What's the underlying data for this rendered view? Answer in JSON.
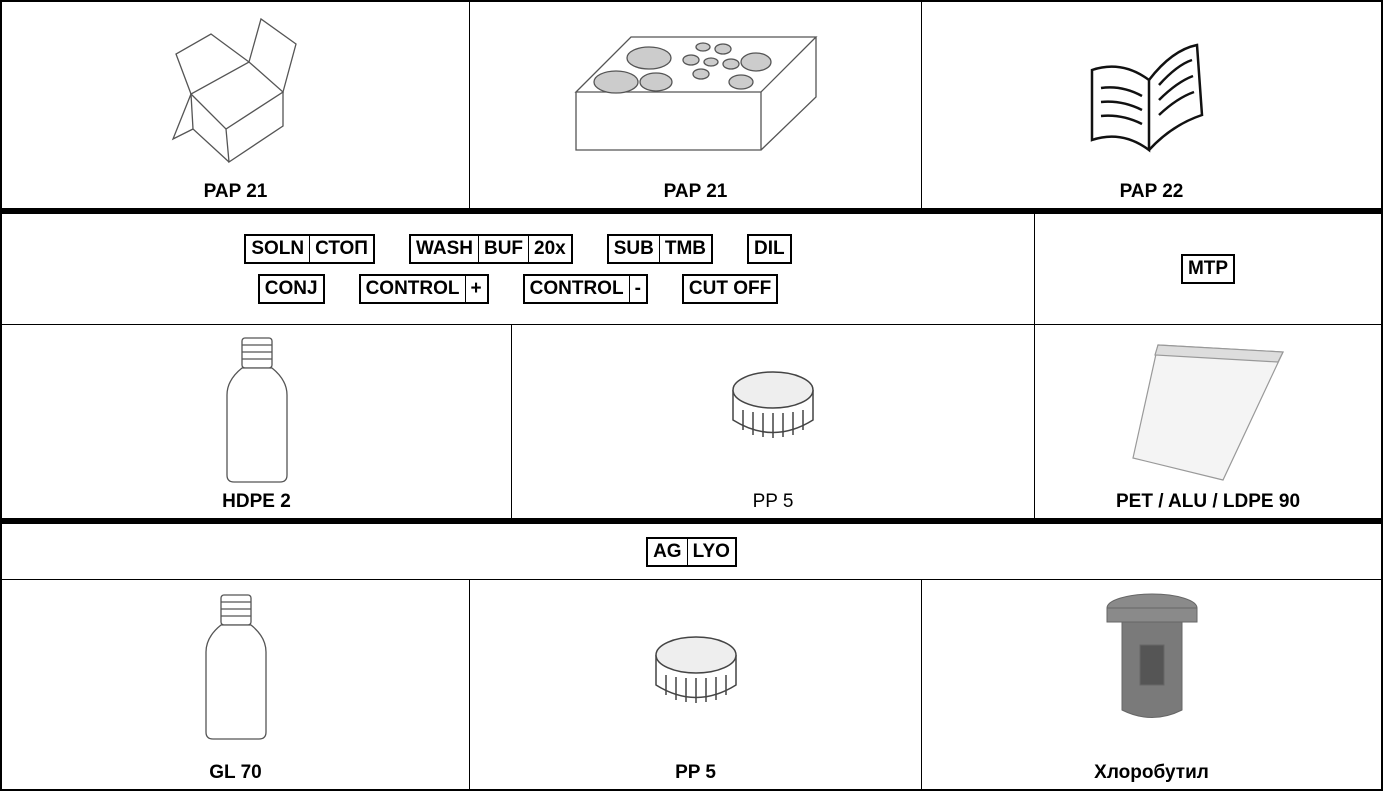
{
  "rows": [
    {
      "cells": [
        {
          "label": "PAP 21"
        },
        {
          "label": "PAP 21"
        },
        {
          "label": "PAP 22"
        }
      ]
    },
    {
      "cells": [
        {
          "symbol_lines": [
            [
              [
                "SOLN",
                "СТОП"
              ],
              [
                "WASH",
                "BUF",
                "20x"
              ],
              [
                "SUB",
                "TMB"
              ],
              [
                "DIL"
              ]
            ],
            [
              [
                "CONJ"
              ],
              [
                "CONTROL",
                "+"
              ],
              [
                "CONTROL",
                "-"
              ],
              [
                "CUT OFF"
              ]
            ]
          ]
        },
        {
          "symbol_lines": [
            [
              [
                "MTP"
              ]
            ]
          ]
        }
      ]
    },
    {
      "cells": [
        {
          "label": "HDPE 2"
        },
        {
          "label": "PP 5"
        },
        {
          "label": "PET / ALU / LDPE 90"
        }
      ]
    },
    {
      "cells": [
        {
          "symbol_lines": [
            [
              [
                "AG",
                "LYO"
              ]
            ]
          ]
        }
      ]
    },
    {
      "cells": [
        {
          "label": "GL 70"
        },
        {
          "label": "PP 5"
        },
        {
          "label": "Хлоробутил"
        }
      ]
    }
  ]
}
